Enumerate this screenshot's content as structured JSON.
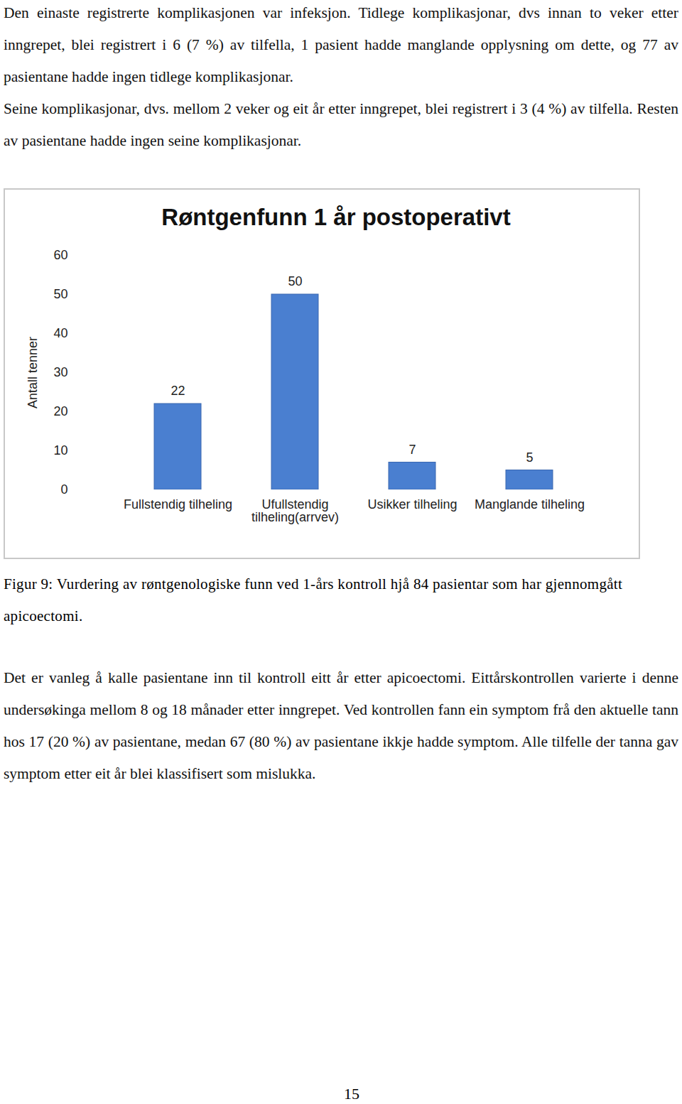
{
  "paragraphs_above": [
    "Den einaste registrerte komplikasjonen var infeksjon. Tidlege komplikasjonar, dvs innan to veker etter inngrepet, blei registrert i 6 (7 %) av tilfella, 1 pasient hadde manglande opplysning om dette, og 77 av pasientane hadde ingen tidlege komplikasjonar.",
    "Seine komplikasjonar, dvs. mellom 2 veker og eit år etter inngrepet, blei registrert i 3 (4 %) av tilfella. Resten av pasientane hadde ingen seine komplikasjonar."
  ],
  "chart_data": {
    "type": "bar",
    "title": "Røntgenfunn 1 år postoperativt",
    "y_label": "Antall tenner",
    "categories": [
      "Fullstendig tilheling",
      "Ufullstendig tilheling(arrvev)",
      "Usikker tilheling",
      "Manglande tilheling"
    ],
    "values": [
      22,
      50,
      7,
      5
    ],
    "color": "#4a7fd0",
    "ylim": [
      0,
      60
    ],
    "yticks": [
      0,
      10,
      20,
      30,
      40,
      50,
      60
    ],
    "grid": false,
    "data_labels": true
  },
  "caption": "Figur 9: Vurdering av røntgenologiske funn ved 1-års kontroll hjå 84 pasientar som har gjennomgått apicoectomi.",
  "paragraphs_below": [
    "Det er vanleg å kalle pasientane inn til kontroll eitt år etter apicoectomi. Eittårskontrollen varierte i denne undersøkinga mellom 8 og 18 månader etter inngrepet. Ved kontrollen fann ein symptom frå den aktuelle tann hos 17 (20 %) av pasientane, medan 67 (80 %) av pasientane ikkje hadde symptom. Alle tilfelle der tanna gav symptom etter eit år blei klassifisert som mislukka."
  ],
  "page_number": "15"
}
